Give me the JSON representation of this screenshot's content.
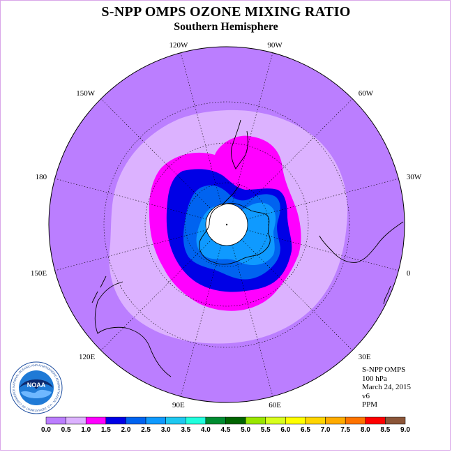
{
  "title": "S-NPP OMPS OZONE MIXING RATIO",
  "subtitle": "Southern Hemisphere",
  "longitude_labels": [
    "90W",
    "60W",
    "30W",
    "0",
    "30E",
    "60E",
    "90E",
    "120E",
    "150E",
    "180",
    "150W",
    "120W"
  ],
  "info": {
    "instrument": "S-NPP OMPS",
    "level": "100 hPa",
    "date": "March 24, 2015",
    "version": "v6",
    "units": "PPM"
  },
  "logo": {
    "text": "NOAA",
    "ring_text": "NATIONAL OCEANIC AND ATMOSPHERIC ADMINISTRATION · U.S. DEPARTMENT OF COMMERCE"
  },
  "colorbar": {
    "ticks": [
      "0.0",
      "0.5",
      "1.0",
      "1.5",
      "2.0",
      "2.5",
      "3.0",
      "3.5",
      "4.0",
      "4.5",
      "5.0",
      "5.5",
      "6.0",
      "6.5",
      "7.0",
      "7.5",
      "8.0",
      "8.5",
      "9.0"
    ],
    "colors": [
      "#bb7eff",
      "#dcb2ff",
      "#ff00ff",
      "#0000e6",
      "#0063f0",
      "#0f9aff",
      "#1ec8f0",
      "#20ffdd",
      "#008c31",
      "#006400",
      "#99e600",
      "#d8ff1d",
      "#ffff00",
      "#ffd500",
      "#ffab00",
      "#ff7300",
      "#ff0000",
      "#8b5538"
    ]
  },
  "map_data": {
    "projection": "south-polar-stereographic",
    "variable": "ozone mixing ratio",
    "units": "PPM",
    "level_hpa": 100,
    "contour_levels": [
      0.0,
      0.5,
      1.0,
      1.5,
      2.0,
      2.5,
      3.0,
      3.5,
      4.0,
      4.5,
      5.0,
      5.5,
      6.0,
      6.5,
      7.0,
      7.5,
      8.0,
      8.5,
      9.0
    ],
    "field_regions": [
      {
        "range": [
          0.0,
          0.5
        ],
        "color": "#bb7eff",
        "where": "outer disk"
      },
      {
        "range": [
          0.5,
          1.0
        ],
        "color": "#dcb2ff",
        "where": "mid latitudes band"
      },
      {
        "range": [
          1.0,
          1.5
        ],
        "color": "#ff00ff",
        "where": "vortex edge"
      },
      {
        "range": [
          1.5,
          2.0
        ],
        "color": "#0000e6",
        "where": "inner ring"
      },
      {
        "range": [
          2.0,
          2.5
        ],
        "color": "#0063f0",
        "where": "polar core"
      },
      {
        "range": [
          2.5,
          3.0
        ],
        "color": "#0f9aff",
        "where": "polar core maximum"
      }
    ],
    "pole_missing": true,
    "graticule": "dotted"
  }
}
